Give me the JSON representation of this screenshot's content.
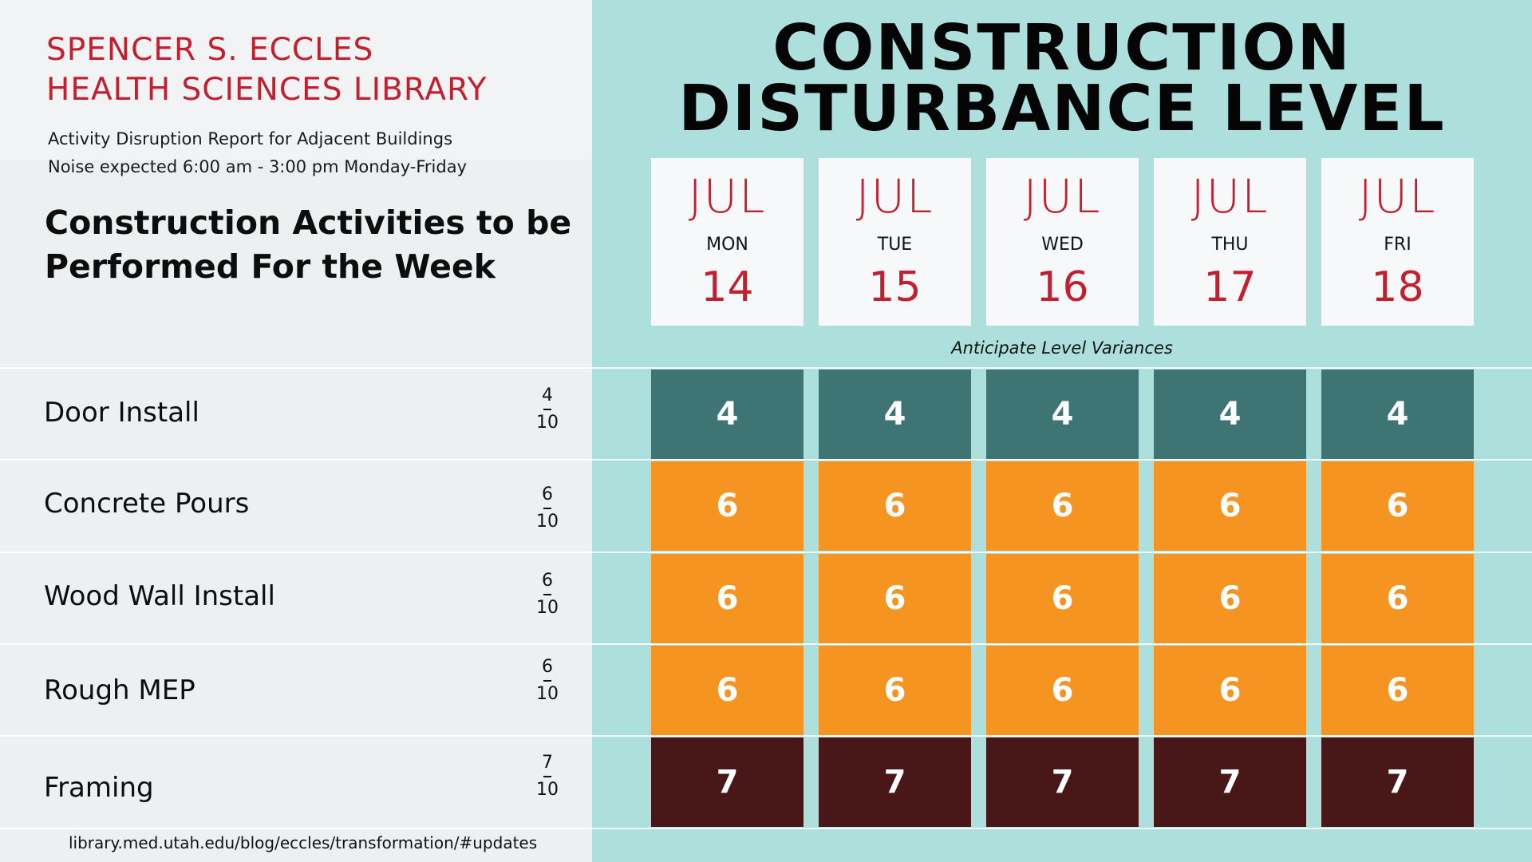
{
  "library": {
    "title_line1": "SPENCER S. ECCLES",
    "title_line2": "HEALTH SCIENCES LIBRARY",
    "report_line": "Activity Disruption Report for Adjacent Buildings",
    "noise_line": "Noise expected 6:00 am - 3:00 pm Monday-Friday"
  },
  "activities_heading": {
    "line1": "Construction Activities to be",
    "line2": "Performed For the Week"
  },
  "main_title": {
    "line1": "CONSTRUCTION",
    "line2": "DISTURBANCE LEVEL"
  },
  "days": [
    {
      "month": "JUL",
      "weekday": "MON",
      "date": "14"
    },
    {
      "month": "JUL",
      "weekday": "TUE",
      "date": "15"
    },
    {
      "month": "JUL",
      "weekday": "WED",
      "date": "16"
    },
    {
      "month": "JUL",
      "weekday": "THU",
      "date": "17"
    },
    {
      "month": "JUL",
      "weekday": "FRI",
      "date": "18"
    }
  ],
  "variance_note": "Anticipate Level Variances",
  "activities": [
    {
      "name": "Door Install",
      "level": "4",
      "max": "10",
      "daily": [
        "4",
        "4",
        "4",
        "4",
        "4"
      ],
      "color": "#3e7473"
    },
    {
      "name": "Concrete Pours",
      "level": "6",
      "max": "10",
      "daily": [
        "6",
        "6",
        "6",
        "6",
        "6"
      ],
      "color": "#f69421"
    },
    {
      "name": "Wood Wall Install",
      "level": "6",
      "max": "10",
      "daily": [
        "6",
        "6",
        "6",
        "6",
        "6"
      ],
      "color": "#f69421"
    },
    {
      "name": "Rough MEP",
      "level": "6",
      "max": "10",
      "daily": [
        "6",
        "6",
        "6",
        "6",
        "6"
      ],
      "color": "#f69421"
    },
    {
      "name": "Framing",
      "level": "7",
      "max": "10",
      "daily": [
        "7",
        "7",
        "7",
        "7",
        "7"
      ],
      "color": "#4a1719"
    }
  ],
  "footer_url": "library.med.utah.edu/blog/eccles/transformation/#updates",
  "colors": {
    "accent_red": "#c2202f",
    "right_panel": "#ade0dc"
  }
}
